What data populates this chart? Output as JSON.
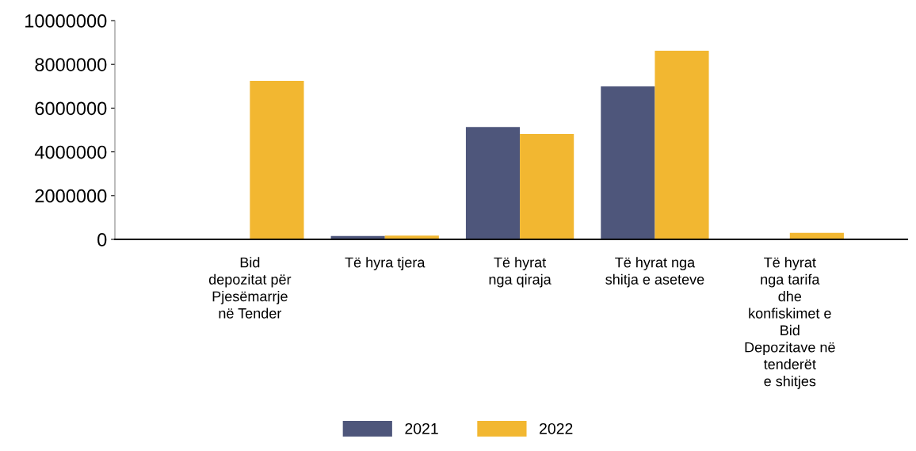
{
  "chart_data": {
    "type": "bar",
    "categories": [
      "Bid\ndepozitat për\nPjesëmarrje\nnë Tender",
      "Të hyra tjera",
      "Të hyrat\nnga qiraja",
      "Të hyrat nga\nshitja e aseteve",
      "Të hyrat\nnga tarifa\ndhe\nkonfiskimet e\nBid\nDepozitave në\ntenderët\ne shitjes"
    ],
    "series": [
      {
        "name": "2021",
        "color": "#4e567b",
        "values": [
          null,
          150000,
          5140000,
          6990000,
          null
        ]
      },
      {
        "name": "2022",
        "color": "#f2b731",
        "values": [
          7250000,
          170000,
          4820000,
          8620000,
          300000
        ]
      }
    ],
    "ylim": [
      0,
      10000000
    ],
    "yticks": [
      0,
      2000000,
      4000000,
      6000000,
      8000000,
      10000000
    ],
    "grid": false,
    "legend": "bottom"
  }
}
